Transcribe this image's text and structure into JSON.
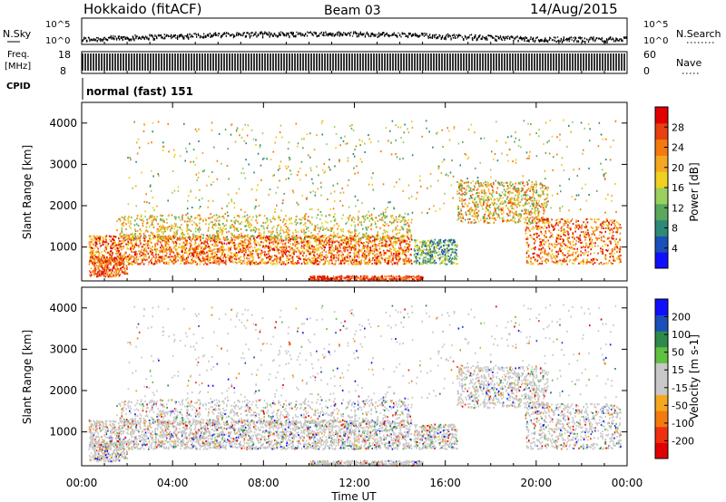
{
  "header": {
    "title": "Hokkaido (fitACF)",
    "beam": "Beam 03",
    "date": "14/Aug/2015"
  },
  "noise_panel": {
    "left_label": "N.Sky",
    "right_label": "N.Search",
    "ticks": [
      "10^5",
      "10^0"
    ]
  },
  "freq_panel": {
    "label_line1": "Freq.",
    "label_line2": "[MHz]",
    "left_ticks": [
      "18",
      "8"
    ],
    "right_ticks": [
      "60",
      "0"
    ],
    "right_label": "Nave"
  },
  "cpid_panel": {
    "label": "CPID",
    "mode": "normal (fast) 151"
  },
  "time_axis": {
    "ticks": [
      "00:00",
      "04:00",
      "08:00",
      "12:00",
      "16:00",
      "20:00",
      "00:00"
    ],
    "label": "Time UT"
  },
  "chart_data": [
    {
      "type": "heatmap",
      "title": "",
      "xlabel": "Time UT",
      "ylabel": "Slant Range [km]",
      "ytick_labels": [
        "1000",
        "2000",
        "3000",
        "4000"
      ],
      "ylim": [
        180,
        4500
      ],
      "colorbar": {
        "label": "Power [dB]",
        "ticks": [
          "28",
          "24",
          "20",
          "16",
          "12",
          "8",
          "4"
        ],
        "range": [
          0,
          30
        ],
        "colors": [
          "#1010ff",
          "#1b50b8",
          "#2e8a78",
          "#5aa85c",
          "#9bd060",
          "#f0d020",
          "#f4a820",
          "#f47a10",
          "#e84010",
          "#e00000"
        ]
      }
    },
    {
      "type": "heatmap",
      "title": "",
      "xlabel": "Time UT",
      "ylabel": "Slant Range [km]",
      "ytick_labels": [
        "1000",
        "2000",
        "3000",
        "4000"
      ],
      "ylim": [
        180,
        4500
      ],
      "colorbar": {
        "label": "Velocity [m s-1]",
        "ticks": [
          "200",
          "100",
          "50",
          "15",
          "-15",
          "-50",
          "-100",
          "-200"
        ],
        "range": [
          -250,
          250
        ],
        "colors": [
          "#e00000",
          "#ef3010",
          "#f47a10",
          "#f4a820",
          "#c8c8c8",
          "#c8c8c8",
          "#60c040",
          "#2e8a4a",
          "#1b50b8",
          "#1010ff"
        ]
      }
    }
  ]
}
